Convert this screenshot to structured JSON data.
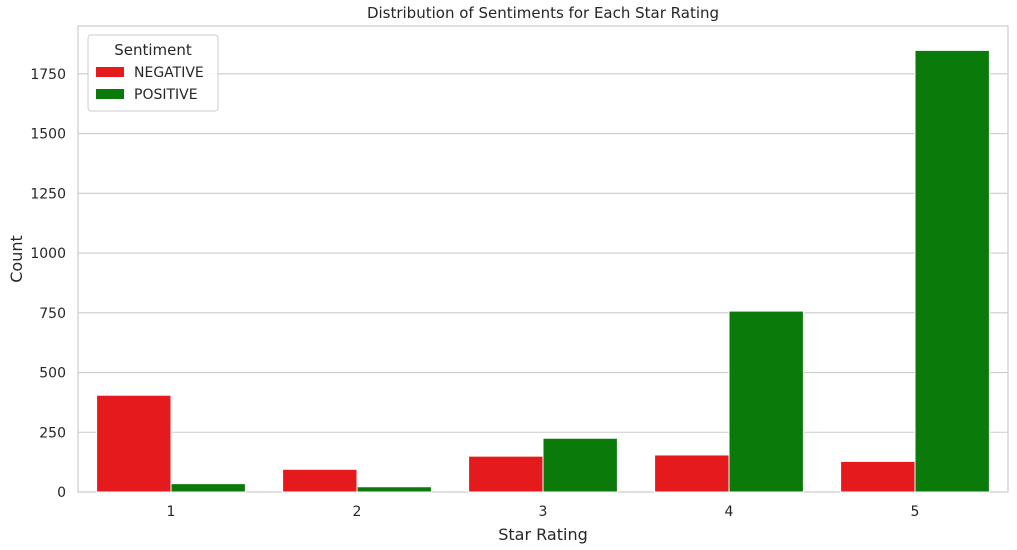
{
  "chart_data": {
    "type": "bar",
    "title": "Distribution of Sentiments for Each Star Rating",
    "xlabel": "Star Rating",
    "ylabel": "Count",
    "categories": [
      "1",
      "2",
      "3",
      "4",
      "5"
    ],
    "series": [
      {
        "name": "NEGATIVE",
        "color": "#e41a1c",
        "values": [
          405,
          95,
          150,
          155,
          128
        ]
      },
      {
        "name": "POSITIVE",
        "color": "#0a7a0a",
        "values": [
          35,
          22,
          225,
          757,
          1848
        ]
      }
    ],
    "ylim": [
      0,
      1950
    ],
    "yticks": [
      0,
      250,
      500,
      750,
      1000,
      1250,
      1500,
      1750
    ],
    "ytick_labels": [
      "0",
      "250",
      "500",
      "750",
      "1000",
      "1250",
      "1500",
      "1750"
    ],
    "grid": true,
    "legend": {
      "title": "Sentiment",
      "position": "top-left"
    }
  }
}
